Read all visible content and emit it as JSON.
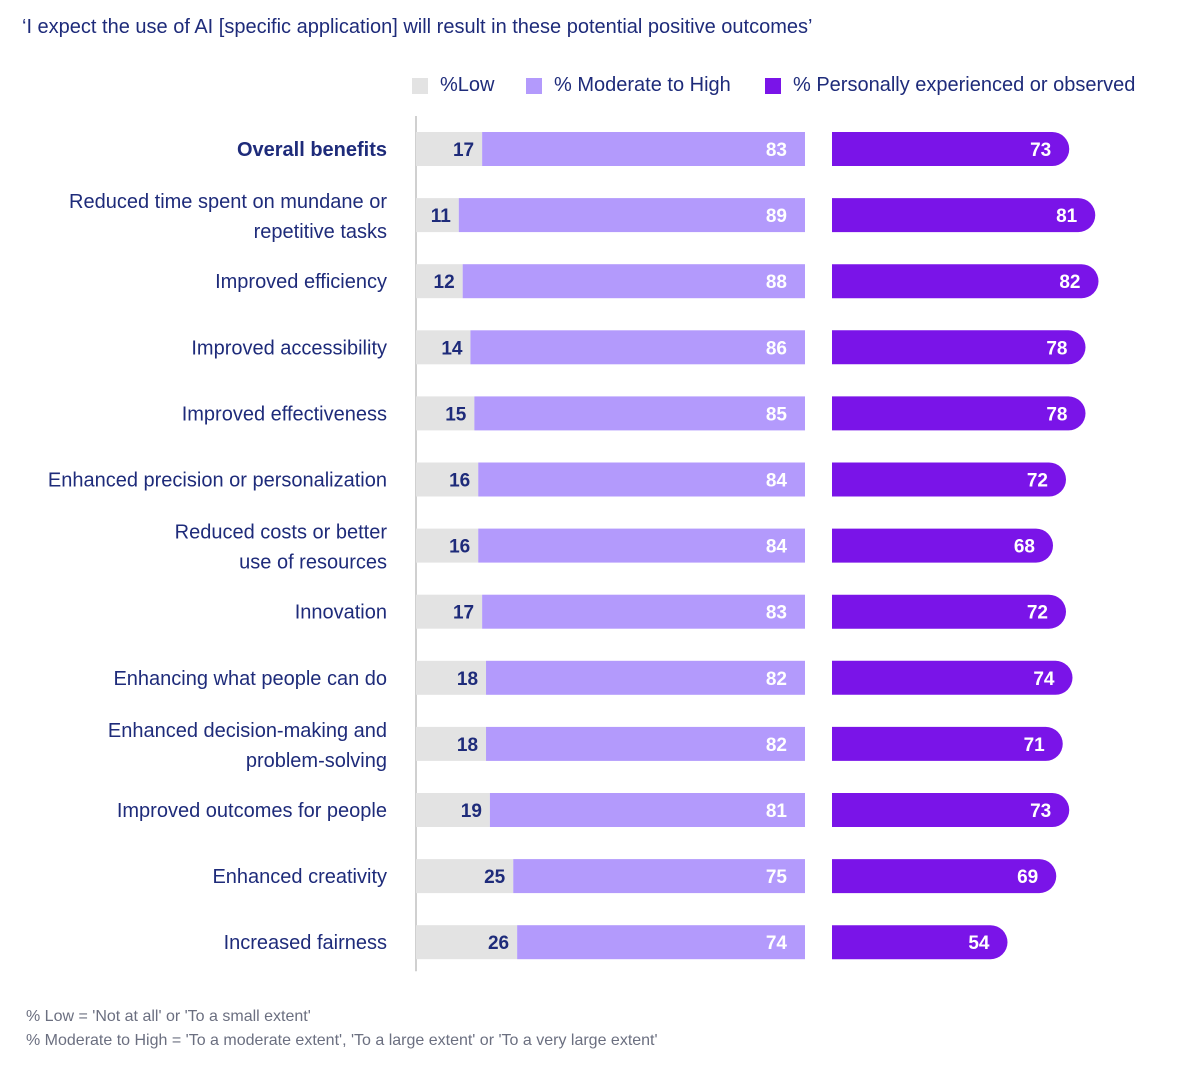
{
  "title": "‘I expect the use of AI [specific application] will result in these potential positive outcomes’",
  "legend": [
    {
      "key": "low",
      "label": "%Low",
      "color": "#e3e3e3"
    },
    {
      "key": "moderate",
      "label": "% Moderate to High",
      "color": "#b39afc"
    },
    {
      "key": "experienced",
      "label": "% Personally experienced or observed",
      "color": "#7a14e8"
    }
  ],
  "footnotes": [
    "% Low = 'Not at all' or 'To a small extent'",
    "% Moderate to High = 'To a moderate extent', 'To a large extent' or 'To a very large extent'"
  ],
  "chart_data": {
    "type": "bar",
    "orientation": "horizontal",
    "stacked_group": [
      "%Low",
      "% Moderate to High"
    ],
    "categories": [
      {
        "lines": [
          "Overall benefits"
        ],
        "bold": true
      },
      {
        "lines": [
          "Reduced time spent on mundane or",
          "repetitive tasks"
        ]
      },
      {
        "lines": [
          "Improved efficiency"
        ]
      },
      {
        "lines": [
          "Improved accessibility"
        ]
      },
      {
        "lines": [
          "Improved effectiveness"
        ]
      },
      {
        "lines": [
          "Enhanced precision or personalization"
        ]
      },
      {
        "lines": [
          "Reduced costs or better",
          "use of resources"
        ]
      },
      {
        "lines": [
          "Innovation"
        ]
      },
      {
        "lines": [
          "Enhancing what people can do"
        ]
      },
      {
        "lines": [
          "Enhanced decision-making and",
          "problem-solving"
        ]
      },
      {
        "lines": [
          "Improved outcomes for people"
        ]
      },
      {
        "lines": [
          "Enhanced creativity"
        ]
      },
      {
        "lines": [
          "Increased fairness"
        ]
      }
    ],
    "series": [
      {
        "name": "%Low",
        "color": "#e3e3e3",
        "label_color": "#1e2b7a",
        "values": [
          17,
          11,
          12,
          14,
          15,
          16,
          16,
          17,
          18,
          18,
          19,
          25,
          26
        ]
      },
      {
        "name": "% Moderate to High",
        "color": "#b39afc",
        "label_color": "#ffffff",
        "values": [
          83,
          89,
          88,
          86,
          85,
          84,
          84,
          83,
          82,
          82,
          81,
          75,
          74
        ]
      },
      {
        "name": "% Personally experienced or observed",
        "color": "#7a14e8",
        "label_color": "#ffffff",
        "values": [
          73,
          81,
          82,
          78,
          78,
          72,
          68,
          72,
          74,
          71,
          73,
          69,
          54
        ]
      }
    ],
    "xlim": [
      0,
      100
    ]
  }
}
